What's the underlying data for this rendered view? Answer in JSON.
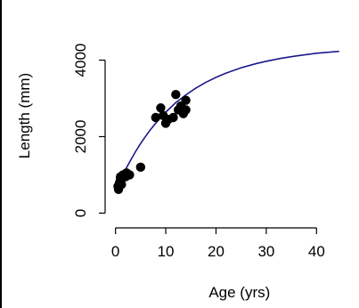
{
  "chart_data": {
    "type": "scatter",
    "title": "",
    "xlabel": "Age (yrs)",
    "ylabel": "Length (mm)",
    "xlim": [
      -1,
      46.5
    ],
    "ylim": [
      -200,
      5200
    ],
    "x_ticks": [
      0,
      10,
      20,
      30,
      40
    ],
    "x_tick_labels": [
      "0",
      "10",
      "20",
      "30",
      "40"
    ],
    "y_ticks": [
      0,
      2000,
      4000
    ],
    "y_tick_labels": [
      "0",
      "2000",
      "4000"
    ],
    "grid": false,
    "legend": "none",
    "point_color": "#000000",
    "curve_color": "#1a1a8c",
    "series": [
      {
        "type": "scatter",
        "points": [
          {
            "x": 0.5,
            "y": 700
          },
          {
            "x": 0.6,
            "y": 620
          },
          {
            "x": 0.8,
            "y": 800
          },
          {
            "x": 1.0,
            "y": 900
          },
          {
            "x": 1.0,
            "y": 950
          },
          {
            "x": 1.2,
            "y": 750
          },
          {
            "x": 1.5,
            "y": 1000
          },
          {
            "x": 2.0,
            "y": 950
          },
          {
            "x": 2.2,
            "y": 1050
          },
          {
            "x": 2.8,
            "y": 1000
          },
          {
            "x": 5.0,
            "y": 1200
          },
          {
            "x": 8.0,
            "y": 2500
          },
          {
            "x": 9.0,
            "y": 2750
          },
          {
            "x": 9.5,
            "y": 2550
          },
          {
            "x": 10.0,
            "y": 2350
          },
          {
            "x": 10.5,
            "y": 2450
          },
          {
            "x": 11.5,
            "y": 2500
          },
          {
            "x": 12.0,
            "y": 3100
          },
          {
            "x": 12.5,
            "y": 2700
          },
          {
            "x": 13.0,
            "y": 2800
          },
          {
            "x": 13.5,
            "y": 2600
          },
          {
            "x": 14.0,
            "y": 2700
          },
          {
            "x": 14.0,
            "y": 2950
          }
        ]
      },
      {
        "type": "line",
        "curve": {
          "x": [
            0.5,
            1,
            2,
            3,
            4,
            5,
            6,
            7,
            8,
            9,
            10,
            12,
            14,
            16,
            18,
            20,
            22,
            25,
            28,
            30,
            33,
            36,
            40,
            44.5
          ],
          "y": [
            750,
            880,
            1140,
            1380,
            1610,
            1820,
            2010,
            2190,
            2350,
            2500,
            2640,
            2890,
            3090,
            3270,
            3420,
            3550,
            3660,
            3800,
            3910,
            3970,
            4050,
            4110,
            4180,
            4230
          ]
        }
      }
    ]
  }
}
